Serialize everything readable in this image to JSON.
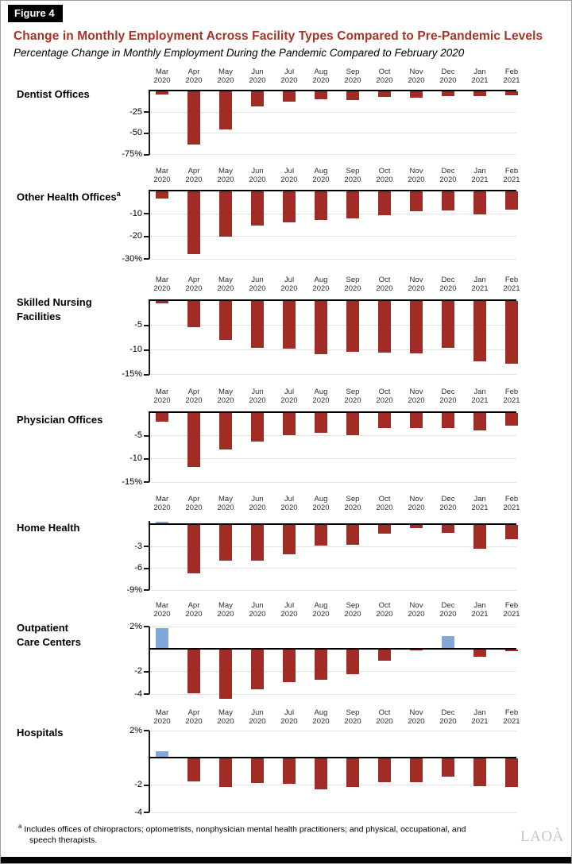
{
  "figure_label": "Figure 4",
  "title": "Change in Monthly Employment Across Facility Types Compared to Pre-Pandemic Levels",
  "subtitle": "Percentage Change in Monthly Employment During the Pandemic Compared to February 2020",
  "months": [
    [
      "Mar",
      "2020"
    ],
    [
      "Apr",
      "2020"
    ],
    [
      "May",
      "2020"
    ],
    [
      "Jun",
      "2020"
    ],
    [
      "Jul",
      "2020"
    ],
    [
      "Aug",
      "2020"
    ],
    [
      "Sep",
      "2020"
    ],
    [
      "Oct",
      "2020"
    ],
    [
      "Nov",
      "2020"
    ],
    [
      "Dec",
      "2020"
    ],
    [
      "Jan",
      "2021"
    ],
    [
      "Feb",
      "2021"
    ]
  ],
  "colors": {
    "bar_negative": "#a02c25",
    "bar_positive": "#82a8d9",
    "title_red": "#a93226",
    "axis_black": "#1a1a1a",
    "gridline_gray": "#e3e3e5"
  },
  "chart_data": [
    {
      "type": "bar",
      "id": "dentist-offices",
      "name": "Dentist Offices",
      "label_lines": [
        "Dentist Offices"
      ],
      "label_sup": "",
      "categories": [
        "Mar 2020",
        "Apr 2020",
        "May 2020",
        "Jun 2020",
        "Jul 2020",
        "Aug 2020",
        "Sep 2020",
        "Oct 2020",
        "Nov 2020",
        "Dec 2020",
        "Jan 2021",
        "Feb 2021"
      ],
      "values": [
        -4,
        -63,
        -45,
        -18.5,
        -12.5,
        -9.5,
        -10.3,
        -7.2,
        -7.5,
        -6.3,
        -6.5,
        -5.3
      ],
      "yticks": [
        {
          "value": -25,
          "label": "-25"
        },
        {
          "value": -50,
          "label": "-50"
        },
        {
          "value": -75,
          "label": "-75%"
        }
      ],
      "ylim": [
        -75,
        0
      ]
    },
    {
      "type": "bar",
      "id": "other-health-offices",
      "name": "Other Health Offices",
      "label_lines": [
        "Other Health Offices"
      ],
      "label_sup": "a",
      "categories": [
        "Mar 2020",
        "Apr 2020",
        "May 2020",
        "Jun 2020",
        "Jul 2020",
        "Aug 2020",
        "Sep 2020",
        "Oct 2020",
        "Nov 2020",
        "Dec 2020",
        "Jan 2021",
        "Feb 2021"
      ],
      "values": [
        -3,
        -27.7,
        -20,
        -15,
        -13.9,
        -12.6,
        -11.8,
        -10.6,
        -8.9,
        -8.6,
        -10.2,
        -8
      ],
      "yticks": [
        {
          "value": -10,
          "label": "-10"
        },
        {
          "value": -20,
          "label": "-20"
        },
        {
          "value": -30,
          "label": "-30%"
        }
      ],
      "ylim": [
        -30,
        0
      ]
    },
    {
      "type": "bar",
      "id": "skilled-nursing-facilities",
      "name": "Skilled Nursing Facilities",
      "label_lines": [
        "Skilled Nursing",
        "Facilities"
      ],
      "label_sup": "",
      "categories": [
        "Mar 2020",
        "Apr 2020",
        "May 2020",
        "Jun 2020",
        "Jul 2020",
        "Aug 2020",
        "Sep 2020",
        "Oct 2020",
        "Nov 2020",
        "Dec 2020",
        "Jan 2021",
        "Feb 2021"
      ],
      "values": [
        -0.6,
        -5.3,
        -8,
        -9.6,
        -9.7,
        -10.9,
        -10.4,
        -10.5,
        -10.7,
        -9.6,
        -12.3,
        -12.8
      ],
      "yticks": [
        {
          "value": -5,
          "label": "-5"
        },
        {
          "value": -10,
          "label": "-10"
        },
        {
          "value": -15,
          "label": "-15%"
        }
      ],
      "ylim": [
        -15,
        0
      ]
    },
    {
      "type": "bar",
      "id": "physician-offices",
      "name": "Physician Offices",
      "label_lines": [
        "Physician Offices"
      ],
      "label_sup": "",
      "categories": [
        "Mar 2020",
        "Apr 2020",
        "May 2020",
        "Jun 2020",
        "Jul 2020",
        "Aug 2020",
        "Sep 2020",
        "Oct 2020",
        "Nov 2020",
        "Dec 2020",
        "Jan 2021",
        "Feb 2021"
      ],
      "values": [
        -2,
        -11.7,
        -8,
        -6.2,
        -4.9,
        -4.3,
        -4.8,
        -3.4,
        -3.4,
        -3.3,
        -3.8,
        -2.9
      ],
      "yticks": [
        {
          "value": -5,
          "label": "-5"
        },
        {
          "value": -10,
          "label": "-10"
        },
        {
          "value": -15,
          "label": "-15%"
        }
      ],
      "ylim": [
        -15,
        0
      ]
    },
    {
      "type": "bar",
      "id": "home-health",
      "name": "Home Health",
      "label_lines": [
        "Home Health"
      ],
      "label_sup": "",
      "categories": [
        "Mar 2020",
        "Apr 2020",
        "May 2020",
        "Jun 2020",
        "Jul 2020",
        "Aug 2020",
        "Sep 2020",
        "Oct 2020",
        "Nov 2020",
        "Dec 2020",
        "Jan 2021",
        "Feb 2021"
      ],
      "values": [
        0.4,
        -6.7,
        -5.0,
        -5.0,
        -4.1,
        -2.9,
        -2.8,
        -1.2,
        -0.5,
        -1.1,
        -3.3,
        -2.0
      ],
      "yticks": [
        {
          "value": -3,
          "label": "-3"
        },
        {
          "value": -6,
          "label": "-6"
        },
        {
          "value": -9,
          "label": "-9%"
        }
      ],
      "ylim": [
        -9,
        0.5
      ]
    },
    {
      "type": "bar",
      "id": "outpatient-care-centers",
      "name": "Outpatient Care Centers",
      "label_lines": [
        "Outpatient",
        "Care Centers"
      ],
      "label_sup": "",
      "categories": [
        "Mar 2020",
        "Apr 2020",
        "May 2020",
        "Jun 2020",
        "Jul 2020",
        "Aug 2020",
        "Sep 2020",
        "Oct 2020",
        "Nov 2020",
        "Dec 2020",
        "Jan 2021",
        "Feb 2021"
      ],
      "values": [
        1.9,
        -3.9,
        -4.4,
        -3.6,
        -2.9,
        -2.7,
        -2.2,
        -1.0,
        -0.1,
        1.2,
        -0.7,
        -0.2
      ],
      "yticks": [
        {
          "value": 2,
          "label": "2%"
        },
        {
          "value": -2,
          "label": "-2"
        },
        {
          "value": -4,
          "label": "-4"
        }
      ],
      "ylim": [
        -4,
        2
      ]
    },
    {
      "type": "bar",
      "id": "hospitals",
      "name": "Hospitals",
      "label_lines": [
        "Hospitals"
      ],
      "label_sup": "",
      "categories": [
        "Mar 2020",
        "Apr 2020",
        "May 2020",
        "Jun 2020",
        "Jul 2020",
        "Aug 2020",
        "Sep 2020",
        "Oct 2020",
        "Nov 2020",
        "Dec 2020",
        "Jan 2021",
        "Feb 2021"
      ],
      "values": [
        0.5,
        -1.7,
        -2.1,
        -1.85,
        -1.9,
        -2.3,
        -2.15,
        -1.75,
        -1.8,
        -1.35,
        -2.05,
        -2.1
      ],
      "yticks": [
        {
          "value": 2,
          "label": "2%"
        },
        {
          "value": -2,
          "label": "-2"
        },
        {
          "value": -4,
          "label": "-4"
        }
      ],
      "ylim": [
        -4,
        2
      ]
    }
  ],
  "footnote": {
    "marker": "a",
    "text": "Includes offices of chiropractors; optometrists, nonphysician mental health practitioners; and physical, occupational, and speech therapists."
  },
  "logo": "LAOÀ"
}
